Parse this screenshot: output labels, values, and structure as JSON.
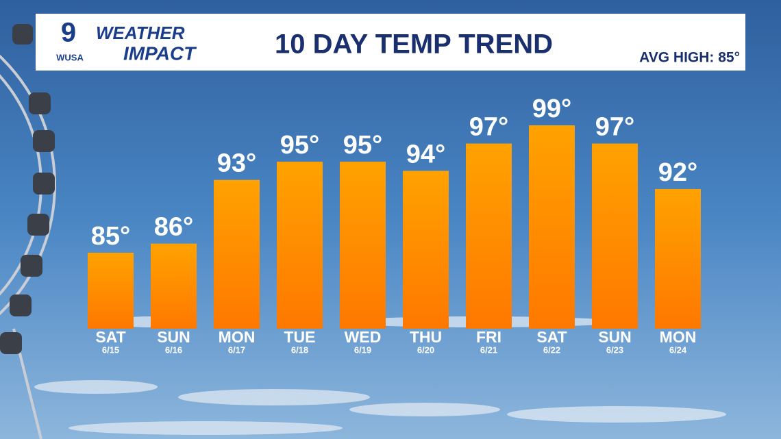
{
  "branding": {
    "station": "WUSA",
    "channel": "9",
    "brand_top": "WEATHER",
    "brand_bottom": "IMPACT"
  },
  "chart_data": {
    "type": "bar",
    "title": "10 DAY TEMP TREND",
    "note": "AVG HIGH: 85°",
    "categories": [
      "SAT",
      "SUN",
      "MON",
      "TUE",
      "WED",
      "THU",
      "FRI",
      "SAT",
      "SUN",
      "MON"
    ],
    "dates": [
      "6/15",
      "6/16",
      "6/17",
      "6/18",
      "6/19",
      "6/20",
      "6/21",
      "6/22",
      "6/23",
      "6/24"
    ],
    "values": [
      85,
      86,
      93,
      95,
      95,
      94,
      97,
      99,
      97,
      92
    ],
    "value_labels": [
      "85°",
      "86°",
      "93°",
      "95°",
      "95°",
      "94°",
      "97°",
      "99°",
      "97°",
      "92°"
    ],
    "color": "#ff8a00"
  }
}
